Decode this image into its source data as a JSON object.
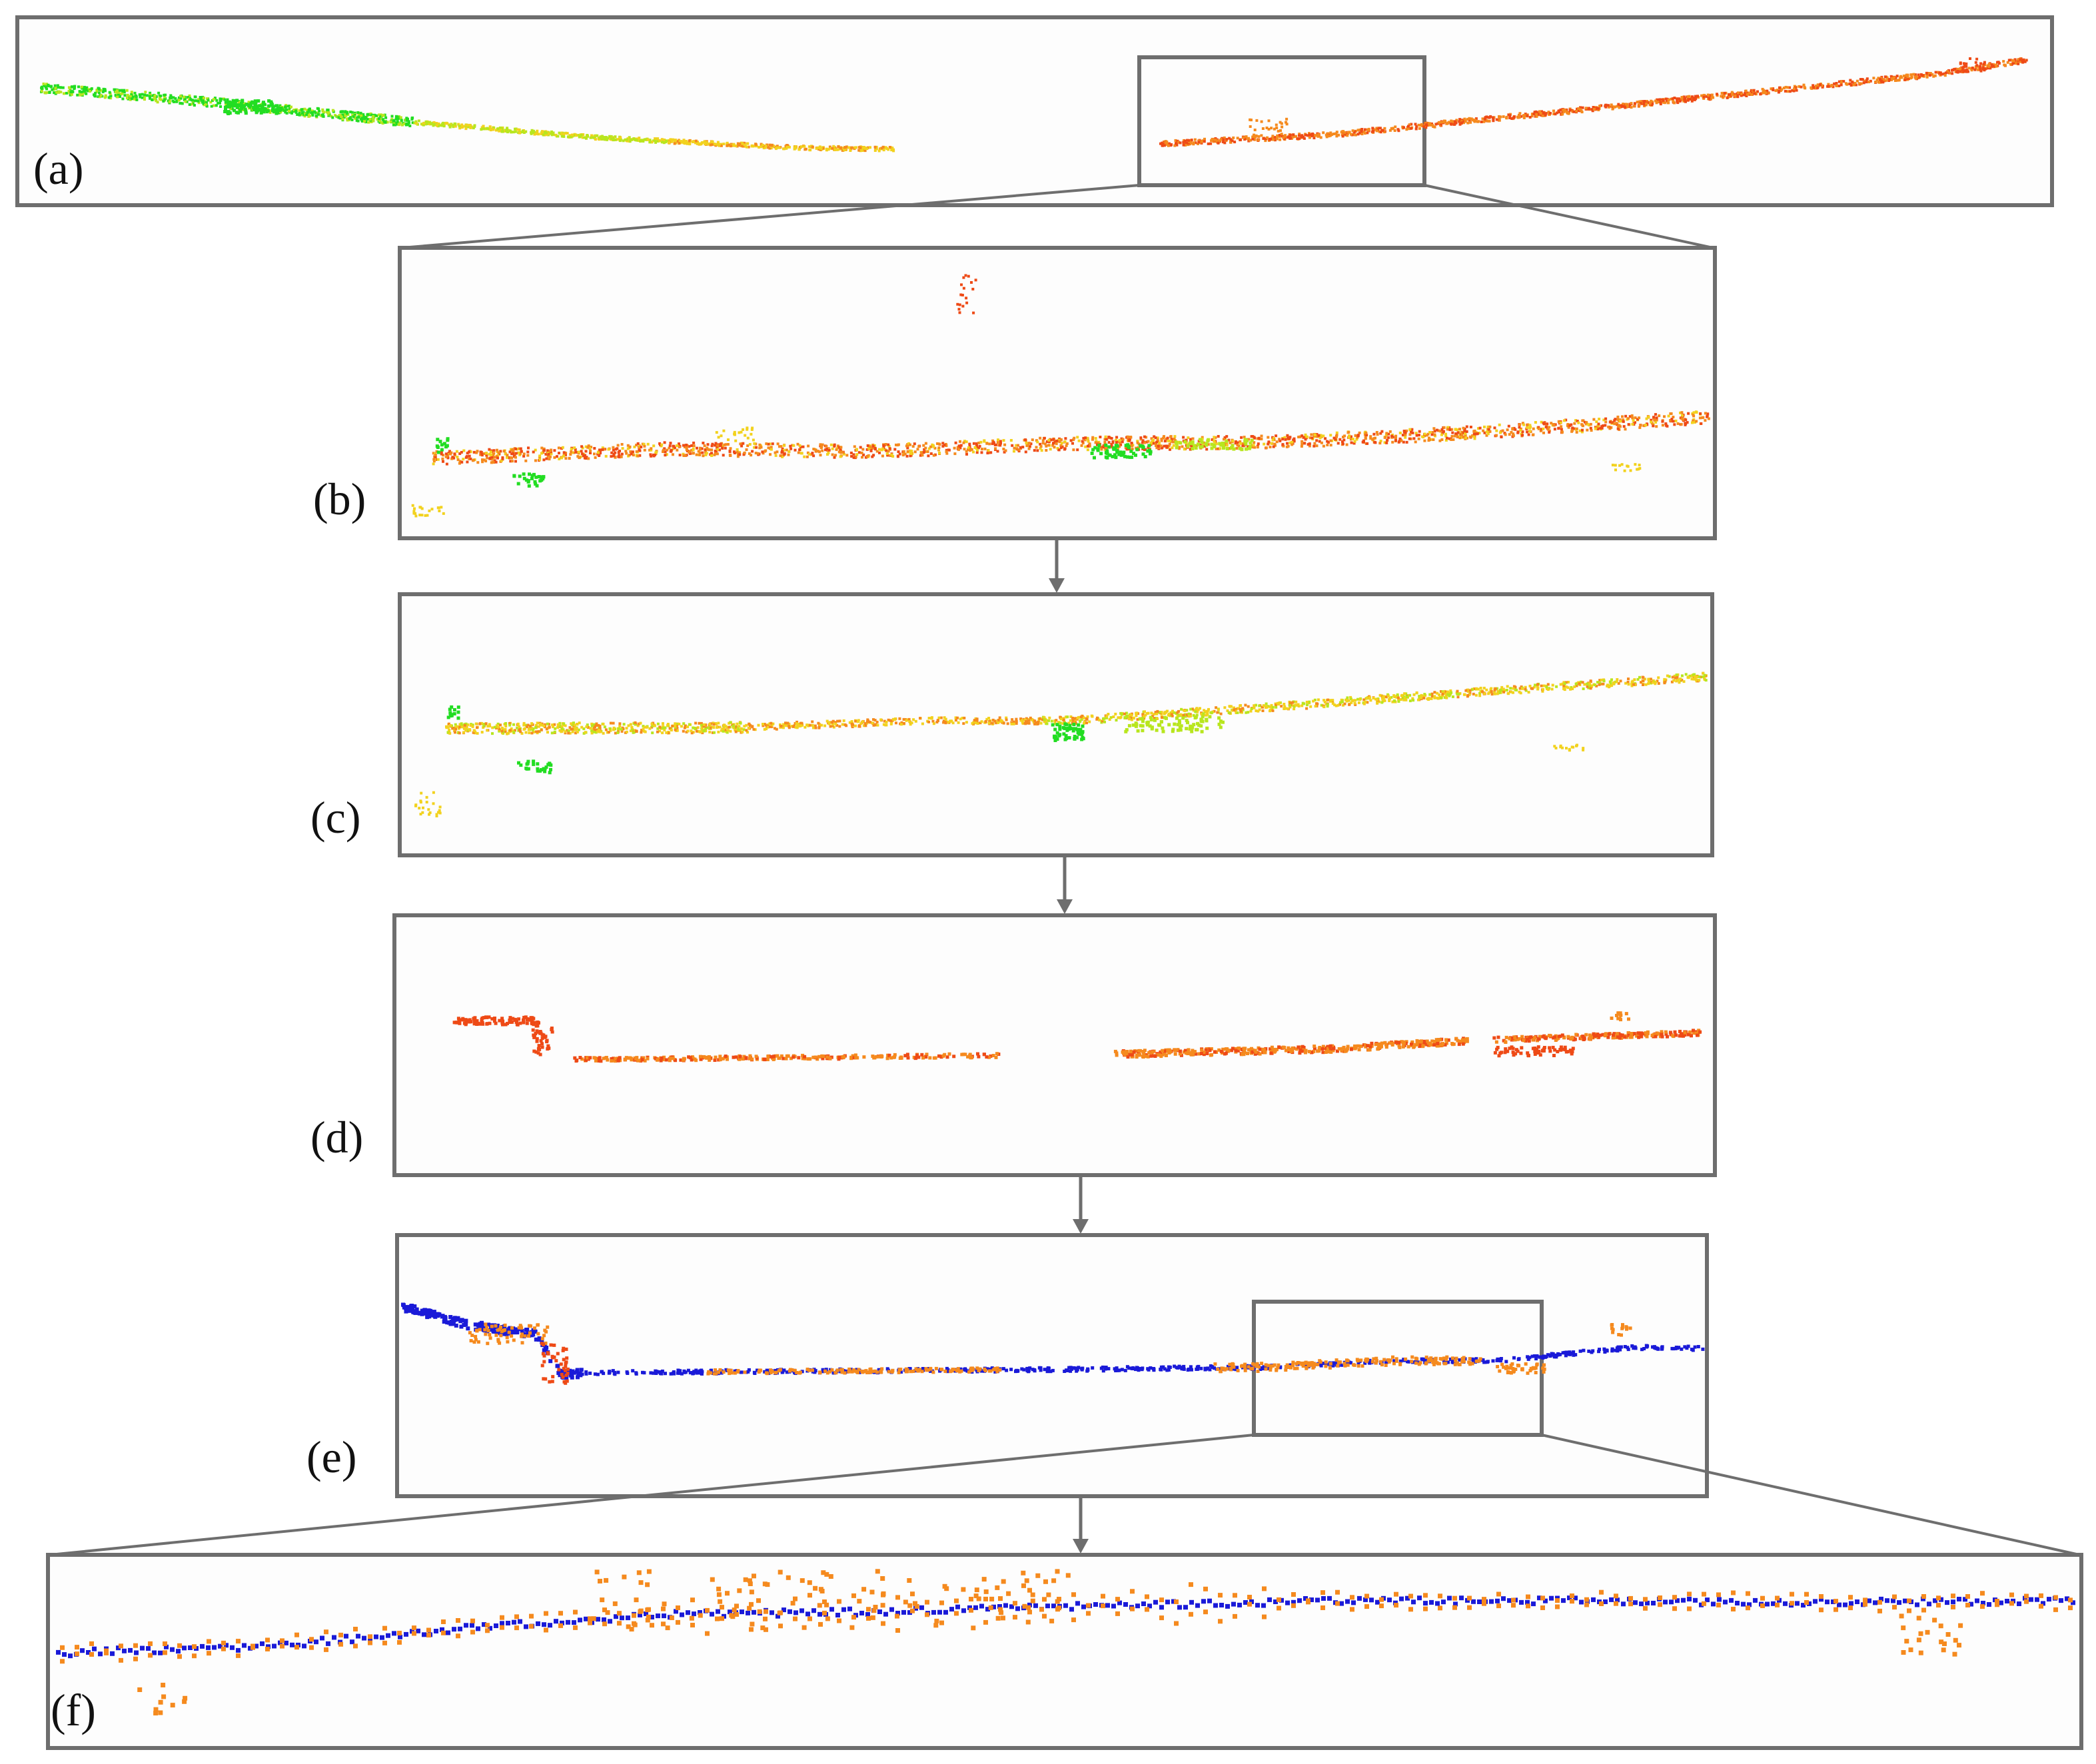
{
  "panels": [
    {
      "id": "a",
      "label": "(a)"
    },
    {
      "id": "b",
      "label": "(b)"
    },
    {
      "id": "c",
      "label": "(c)"
    },
    {
      "id": "d",
      "label": "(d)"
    },
    {
      "id": "e",
      "label": "(e)"
    },
    {
      "id": "f",
      "label": "(f)"
    }
  ],
  "colors": {
    "frame": "#6e6e6e",
    "panel_background": "#fdfdfd",
    "green": "#22dd22",
    "yellow_green": "#b8e61e",
    "yellow": "#f2d21e",
    "orange": "#f58a1e",
    "red_orange": "#ee4a16",
    "blue": "#1a1ad8"
  }
}
